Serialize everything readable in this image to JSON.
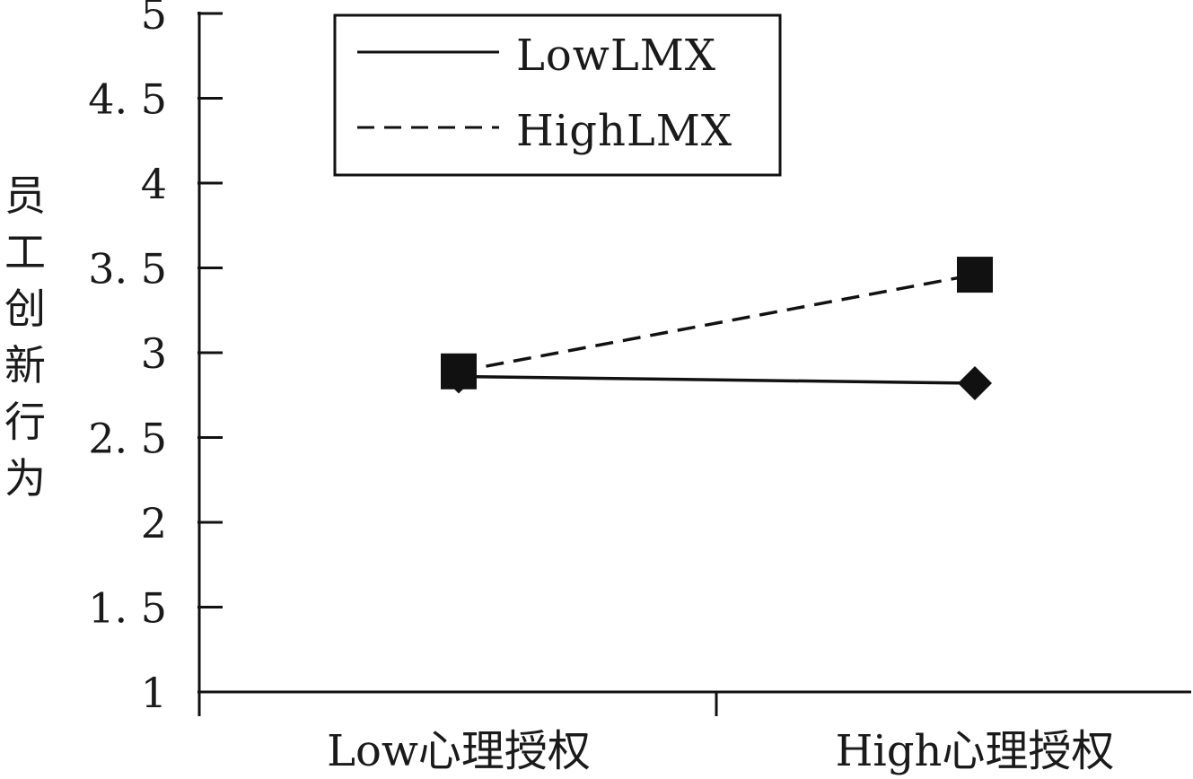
{
  "chart_data": {
    "type": "line",
    "title": "",
    "xlabel": "",
    "ylabel": "员工创新行为",
    "categories": [
      "Low心理授权",
      "High心理授权"
    ],
    "ylim": [
      1,
      5
    ],
    "yticks": [
      "1",
      "1. 5",
      "2",
      "2. 5",
      "3",
      "3. 5",
      "4",
      "4. 5",
      "5"
    ],
    "ytick_values": [
      1,
      1.5,
      2,
      2.5,
      3,
      3.5,
      4,
      4.5,
      5
    ],
    "grid": false,
    "legend_position": "top-center",
    "series": [
      {
        "name": "LowLMX",
        "values": [
          2.86,
          2.82
        ],
        "line_style": "solid",
        "marker": "diamond",
        "color": "#111111"
      },
      {
        "name": "HighLMX",
        "values": [
          2.89,
          3.46
        ],
        "line_style": "dashed",
        "marker": "square",
        "color": "#111111"
      }
    ]
  }
}
